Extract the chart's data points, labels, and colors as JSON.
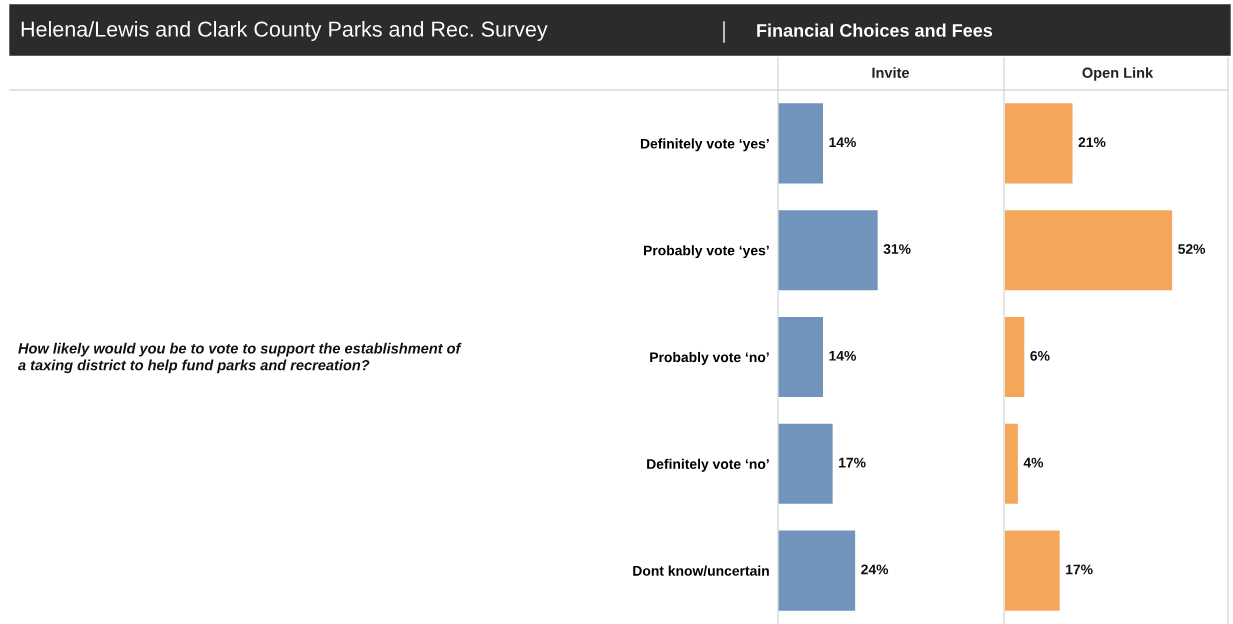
{
  "chart_data": [
    {
      "type": "bar",
      "orientation": "horizontal",
      "title": "Helena/Lewis and Clark County Parks and Rec. Survey",
      "subtitle": "Financial Choices and Fees",
      "annotations": [
        "How likely would you be to vote to support the establishment of a taxing district to help fund parks and recreation?"
      ],
      "categories": [
        "Definitely vote ‘yes’",
        "Probably vote ‘yes’",
        "Probably vote ‘no’",
        "Definitely vote ‘no’",
        "Dont know/uncertain"
      ],
      "xlim": [
        0,
        70
      ],
      "tick_labels": "y",
      "series": [
        {
          "name": "Invite",
          "color": "#7094bb",
          "values": [
            14,
            31,
            14,
            17,
            24
          ],
          "value_labels": [
            "14%",
            "31%",
            "14%",
            "17%",
            "24%"
          ]
        }
      ]
    },
    {
      "type": "bar",
      "orientation": "horizontal",
      "categories": [
        null,
        null,
        null,
        null,
        null
      ],
      "xlim": [
        0,
        70
      ],
      "tick_labels": false,
      "series": [
        {
          "name": "Open Link",
          "color": "#f4a75a",
          "values": [
            21,
            52,
            6,
            4,
            17
          ],
          "value_labels": [
            "21%",
            "52%",
            "6%",
            "4%",
            "17%"
          ]
        }
      ]
    }
  ]
}
